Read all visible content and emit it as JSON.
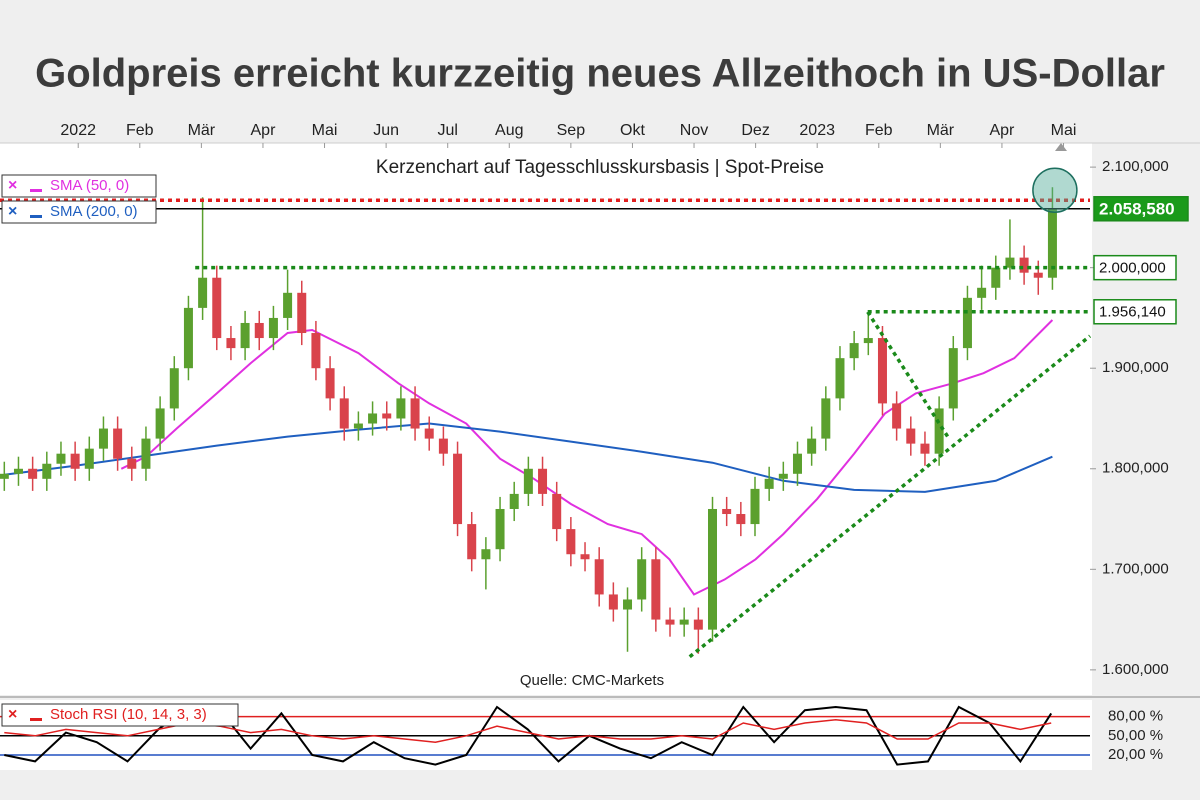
{
  "chart_data": [
    {
      "type": "candlestick",
      "title": "Goldpreis erreicht kurzzeitig neues Allzeithoch in US-Dollar",
      "subtitle": "Kerzenchart auf Tagesschlusskursbasis | Spot-Preise",
      "source": "Quelle: CMC-Markets",
      "x": [
        -1.2,
        -0.97,
        -0.74,
        -0.51,
        -0.28,
        -0.05,
        0.18,
        0.41,
        0.64,
        0.87,
        1.1,
        1.33,
        1.56,
        1.79,
        2.02,
        2.25,
        2.48,
        2.71,
        2.94,
        3.17,
        3.4,
        3.63,
        3.86,
        4.09,
        4.32,
        4.55,
        4.78,
        5.01,
        5.24,
        5.47,
        5.7,
        5.93,
        6.16,
        6.39,
        6.62,
        6.85,
        7.08,
        7.31,
        7.54,
        7.77,
        8.0,
        8.23,
        8.46,
        8.69,
        8.92,
        9.15,
        9.38,
        9.61,
        9.84,
        10.07,
        10.3,
        10.53,
        10.76,
        10.99,
        11.22,
        11.45,
        11.68,
        11.91,
        12.14,
        12.37,
        12.6,
        12.83,
        13.06,
        13.29,
        13.52,
        13.75,
        13.98,
        14.21,
        14.44,
        14.67,
        14.9,
        15.13,
        15.36,
        15.59,
        15.82
      ],
      "open": [
        1790,
        1795,
        1800,
        1790,
        1805,
        1815,
        1800,
        1820,
        1840,
        1810,
        1800,
        1830,
        1860,
        1900,
        1960,
        1990,
        1930,
        1920,
        1945,
        1930,
        1950,
        1975,
        1935,
        1900,
        1870,
        1840,
        1845,
        1855,
        1850,
        1870,
        1840,
        1830,
        1815,
        1745,
        1710,
        1720,
        1760,
        1775,
        1800,
        1775,
        1740,
        1715,
        1710,
        1675,
        1660,
        1670,
        1710,
        1650,
        1645,
        1650,
        1640,
        1760,
        1755,
        1745,
        1780,
        1790,
        1795,
        1815,
        1830,
        1870,
        1910,
        1925,
        1930,
        1865,
        1840,
        1825,
        1815,
        1860,
        1920,
        1970,
        1980,
        2000,
        2010,
        1995,
        1990
      ],
      "high": [
        1807,
        1812,
        1812,
        1817,
        1827,
        1827,
        1832,
        1852,
        1852,
        1822,
        1842,
        1872,
        1912,
        1972,
        2070,
        2002,
        1942,
        1957,
        1957,
        1962,
        1998,
        1987,
        1947,
        1912,
        1882,
        1857,
        1867,
        1867,
        1882,
        1882,
        1852,
        1842,
        1827,
        1757,
        1732,
        1772,
        1787,
        1812,
        1812,
        1787,
        1752,
        1727,
        1722,
        1687,
        1682,
        1722,
        1722,
        1662,
        1662,
        1662,
        1772,
        1772,
        1767,
        1792,
        1802,
        1807,
        1827,
        1842,
        1882,
        1922,
        1937,
        1955,
        1942,
        1877,
        1852,
        1837,
        1872,
        1932,
        1982,
        2002,
        2012,
        2048,
        2022,
        2007,
        2080
      ],
      "low": [
        1778,
        1783,
        1778,
        1778,
        1793,
        1788,
        1788,
        1808,
        1798,
        1788,
        1788,
        1818,
        1848,
        1888,
        1948,
        1918,
        1908,
        1908,
        1918,
        1918,
        1938,
        1923,
        1888,
        1858,
        1828,
        1828,
        1833,
        1838,
        1838,
        1828,
        1818,
        1803,
        1733,
        1698,
        1680,
        1708,
        1748,
        1763,
        1763,
        1728,
        1703,
        1698,
        1663,
        1648,
        1618,
        1658,
        1638,
        1633,
        1633,
        1616,
        1628,
        1743,
        1733,
        1733,
        1768,
        1778,
        1783,
        1803,
        1818,
        1858,
        1898,
        1913,
        1853,
        1828,
        1813,
        1803,
        1803,
        1848,
        1908,
        1958,
        1968,
        1988,
        1983,
        1973,
        1978
      ],
      "close": [
        1795,
        1800,
        1790,
        1805,
        1815,
        1800,
        1820,
        1840,
        1810,
        1800,
        1830,
        1860,
        1900,
        1960,
        1990,
        1930,
        1920,
        1945,
        1930,
        1950,
        1975,
        1935,
        1900,
        1870,
        1840,
        1845,
        1855,
        1850,
        1870,
        1840,
        1830,
        1815,
        1745,
        1710,
        1720,
        1760,
        1775,
        1800,
        1775,
        1740,
        1715,
        1710,
        1675,
        1660,
        1670,
        1710,
        1650,
        1645,
        1650,
        1640,
        1760,
        1755,
        1745,
        1780,
        1790,
        1795,
        1815,
        1830,
        1870,
        1910,
        1925,
        1930,
        1865,
        1840,
        1825,
        1815,
        1860,
        1920,
        1970,
        1980,
        2000,
        2010,
        1995,
        1990,
        2058.58
      ],
      "up_color": "#5ba02e",
      "down_color": "#d9434b",
      "series": [
        {
          "name": "SMA (50, 0)",
          "color": "#e030e0",
          "x": [
            0.7,
            1.1,
            1.6,
            2.25,
            2.8,
            3.4,
            3.8,
            4.55,
            5.2,
            5.7,
            6.3,
            6.85,
            7.4,
            8.0,
            8.6,
            9.15,
            9.6,
            10.0,
            10.5,
            11.0,
            11.45,
            12.0,
            12.6,
            13.1,
            13.6,
            14.2,
            14.7,
            15.2,
            15.82
          ],
          "values": [
            1800,
            1812,
            1840,
            1875,
            1905,
            1935,
            1938,
            1915,
            1885,
            1865,
            1845,
            1810,
            1790,
            1765,
            1745,
            1735,
            1710,
            1675,
            1690,
            1710,
            1735,
            1770,
            1815,
            1855,
            1875,
            1885,
            1895,
            1910,
            1948
          ]
        },
        {
          "name": "SMA (200, 0)",
          "color": "#1f5fc0",
          "x": [
            -1.2,
            -0.05,
            1.1,
            2.25,
            3.4,
            4.55,
            5.7,
            6.85,
            8.0,
            9.15,
            10.3,
            11.45,
            12.6,
            13.75,
            14.9,
            15.82
          ],
          "values": [
            1794,
            1803,
            1813,
            1823,
            1832,
            1839,
            1845,
            1837,
            1827,
            1817,
            1806,
            1788,
            1779,
            1777,
            1788,
            1812
          ]
        }
      ],
      "xlim": [
        -1.27,
        16.43
      ],
      "xticks": [
        {
          "value": 0,
          "label": "2022"
        },
        {
          "value": 1,
          "label": "Feb"
        },
        {
          "value": 2,
          "label": "Mär"
        },
        {
          "value": 3,
          "label": "Apr"
        },
        {
          "value": 4,
          "label": "Mai"
        },
        {
          "value": 5,
          "label": "Jun"
        },
        {
          "value": 6,
          "label": "Jul"
        },
        {
          "value": 7,
          "label": "Aug"
        },
        {
          "value": 8,
          "label": "Sep"
        },
        {
          "value": 9,
          "label": "Okt"
        },
        {
          "value": 10,
          "label": "Nov"
        },
        {
          "value": 11,
          "label": "Dez"
        },
        {
          "value": 12,
          "label": "2023"
        },
        {
          "value": 13,
          "label": "Feb"
        },
        {
          "value": 14,
          "label": "Mär"
        },
        {
          "value": 15,
          "label": "Apr"
        },
        {
          "value": 16,
          "label": "Mai"
        }
      ],
      "ylim": [
        1575,
        2122
      ],
      "yticks": [
        {
          "value": 1600,
          "label": "1.600,000"
        },
        {
          "value": 1700,
          "label": "1.700,000"
        },
        {
          "value": 1800,
          "label": "1.800,000"
        },
        {
          "value": 1900,
          "label": "1.900,000"
        },
        {
          "value": 2000,
          "label": "2.000,000"
        },
        {
          "value": 2100,
          "label": "2.100,000"
        }
      ],
      "levels": [
        {
          "value": 2067,
          "color": "#e02020",
          "dashed": true
        },
        {
          "value": 2058.58,
          "color": "#000000",
          "dashed": false,
          "label": "2.058,580"
        },
        {
          "value": 2000,
          "color": "#1a8a1a",
          "dashed": true,
          "from": 1.9,
          "label": "2.000,000"
        },
        {
          "value": 1956.14,
          "color": "#1a8a1a",
          "dashed": true,
          "from": 12.82,
          "label": "1.956,140"
        }
      ],
      "trendlines": [
        {
          "x": [
            9.93,
            16.43
          ],
          "y": [
            1613,
            1932
          ],
          "color": "#1a8a1a"
        },
        {
          "x": [
            12.82,
            14.15
          ],
          "y": [
            1956,
            1829
          ],
          "color": "#1a8a1a"
        }
      ],
      "highlight": {
        "x": 15.86,
        "y": 2077
      }
    },
    {
      "type": "line",
      "title": "Stoch RSI (10, 14, 3, 3)",
      "x": [
        -1.2,
        -0.7,
        -0.2,
        0.3,
        0.8,
        1.3,
        1.8,
        2.3,
        2.8,
        3.3,
        3.8,
        4.3,
        4.8,
        5.3,
        5.8,
        6.3,
        6.8,
        7.3,
        7.8,
        8.3,
        8.8,
        9.3,
        9.8,
        10.3,
        10.8,
        11.3,
        11.8,
        12.3,
        12.8,
        13.3,
        13.8,
        14.3,
        14.8,
        15.3,
        15.8
      ],
      "series": [
        {
          "color": "#000000",
          "values": [
            20,
            10,
            55,
            40,
            10,
            60,
            95,
            90,
            30,
            85,
            20,
            10,
            40,
            15,
            5,
            20,
            95,
            60,
            10,
            50,
            30,
            15,
            40,
            20,
            95,
            40,
            90,
            95,
            90,
            5,
            10,
            95,
            70,
            10,
            85
          ]
        },
        {
          "color": "#e02020",
          "values": [
            55,
            50,
            60,
            55,
            50,
            60,
            70,
            65,
            55,
            60,
            50,
            45,
            50,
            45,
            40,
            50,
            65,
            55,
            45,
            50,
            45,
            45,
            50,
            45,
            70,
            60,
            70,
            75,
            70,
            45,
            45,
            70,
            70,
            60,
            70
          ]
        }
      ],
      "xlim": [
        -1.27,
        16.43
      ],
      "ylim": [
        -3.5,
        106
      ],
      "yticks": [
        {
          "value": 80,
          "label": "80,00 %"
        },
        {
          "value": 50,
          "label": "50,00 %"
        },
        {
          "value": 20,
          "label": "20,00 %"
        }
      ],
      "tick_line_colors": [
        "#e02020",
        "#000000",
        "#2050c0"
      ]
    }
  ]
}
